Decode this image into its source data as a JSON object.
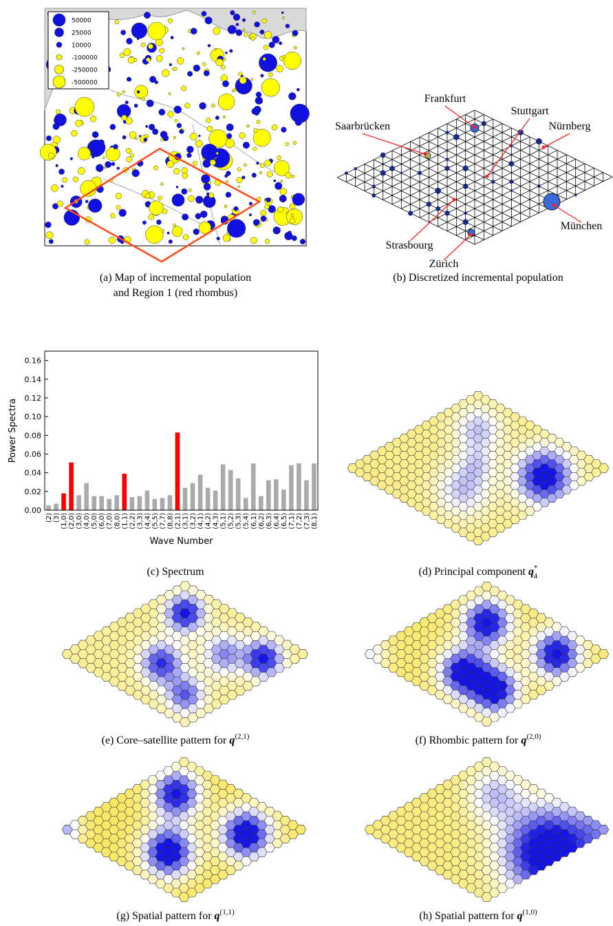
{
  "panels": {
    "a": {
      "caption": [
        "(a) Map of incremental population",
        "and Region 1 (red rhombus)"
      ],
      "legend": [
        "50000",
        "25000",
        "10000",
        "-100000",
        "-250000",
        "-500000"
      ]
    },
    "b": {
      "caption": "(b) Discretized incremental population",
      "cities": [
        "Frankfurt",
        "Saarbrücken",
        "Stuttgart",
        "Nürnberg",
        "Strasbourg",
        "München",
        "Zürich"
      ]
    },
    "c": {
      "caption": "(c) Spectrum"
    },
    "d": {
      "caption": {
        "text": "(d) Principal component ",
        "symbol": "q",
        "sup": "*",
        "sub": "4"
      }
    },
    "e": {
      "caption": {
        "text": "(e) Core–satellite pattern for ",
        "symbol": "q",
        "sup": "(2,1)"
      }
    },
    "f": {
      "caption": {
        "text": "(f) Rhombic pattern for ",
        "symbol": "q",
        "sup": "(2,0)"
      }
    },
    "g": {
      "caption": {
        "text": "(g) Spatial pattern for ",
        "symbol": "q",
        "sup": "(1,1)"
      }
    },
    "h": {
      "caption": {
        "text": "(h) Spatial pattern for ",
        "symbol": "q",
        "sup": "(1,0)"
      }
    }
  },
  "chart_data": {
    "type": "bar",
    "ylabel": "Power Spectra",
    "xlabel": "Wave Number",
    "categories": [
      "(2)",
      "(3)",
      "(1,0)",
      "(2,0)",
      "(3,0)",
      "(4,0)",
      "(5,0)",
      "(6,0)",
      "(7,0)",
      "(8,0)",
      "(1,1)",
      "(2,2)",
      "(3,3)",
      "(4,4)",
      "(5,5)",
      "(7,7)",
      "(8,8)",
      "(2,1)",
      "(3,1)",
      "(3,2)",
      "(4,1)",
      "(4,2)",
      "(4,3)",
      "(5,1)",
      "(5,2)",
      "(5,3)",
      "(5,4)",
      "(6,1)",
      "(6,2)",
      "(6,3)",
      "(6,4)",
      "(6,5)",
      "(7,1)",
      "(7,2)",
      "(7,3)",
      "(8,1)"
    ],
    "values": [
      0.005,
      0.007,
      0.018,
      0.051,
      0.016,
      0.029,
      0.015,
      0.015,
      0.012,
      0.016,
      0.039,
      0.014,
      0.015,
      0.021,
      0.012,
      0.013,
      0.016,
      0.083,
      0.024,
      0.029,
      0.038,
      0.024,
      0.021,
      0.049,
      0.043,
      0.034,
      0.013,
      0.05,
      0.015,
      0.032,
      0.033,
      0.022,
      0.048,
      0.05,
      0.032,
      0.05
    ],
    "colors": [
      "#aaaaaa",
      "#aaaaaa",
      "#ff0000",
      "#ff0000",
      "#aaaaaa",
      "#aaaaaa",
      "#aaaaaa",
      "#aaaaaa",
      "#aaaaaa",
      "#aaaaaa",
      "#ff0000",
      "#aaaaaa",
      "#aaaaaa",
      "#aaaaaa",
      "#aaaaaa",
      "#aaaaaa",
      "#aaaaaa",
      "#ff0000",
      "#aaaaaa",
      "#aaaaaa",
      "#aaaaaa",
      "#aaaaaa",
      "#aaaaaa",
      "#aaaaaa",
      "#aaaaaa",
      "#aaaaaa",
      "#aaaaaa",
      "#aaaaaa",
      "#aaaaaa",
      "#aaaaaa",
      "#aaaaaa",
      "#aaaaaa",
      "#aaaaaa",
      "#aaaaaa",
      "#aaaaaa",
      "#aaaaaa"
    ],
    "ylim": [
      0,
      0.17
    ],
    "yticks": [
      {
        "value": 0,
        "label": "0.00"
      },
      {
        "value": 0.02,
        "label": "0.02"
      },
      {
        "value": 0.04,
        "label": "0.04"
      },
      {
        "value": 0.06,
        "label": "0.06"
      },
      {
        "value": 0.08,
        "label": "0.08"
      },
      {
        "value": 0.1,
        "label": "0.10"
      },
      {
        "value": 0.12,
        "label": "0.12"
      },
      {
        "value": 0.14,
        "label": "0.14"
      },
      {
        "value": 0.16,
        "label": "0.16"
      }
    ]
  }
}
